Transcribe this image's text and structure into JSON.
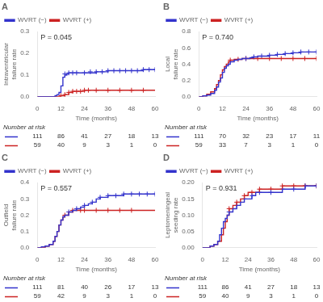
{
  "chart_data": [
    {
      "type": "step",
      "title": "A",
      "xlabel": "Time (months)",
      "ylabel": "Intraventricular failure rate",
      "xlim": [
        0,
        60
      ],
      "xticks": [
        0,
        12,
        24,
        36,
        48,
        60
      ],
      "ylim": [
        0,
        0.3
      ],
      "yticks": [
        {
          "value": 0.0,
          "label": "0.0"
        },
        0.1,
        0.2,
        0.3
      ],
      "grid": false,
      "legend": "upper left",
      "annotations": [
        "P = 0.045"
      ],
      "at_risk_label": "Number at risk",
      "series": [
        {
          "name": "WVRT (−)",
          "color": "#3333cc",
          "x": [
            0,
            2,
            4,
            6,
            8,
            9,
            10,
            11,
            12,
            13,
            14,
            15,
            16,
            18,
            20,
            22,
            24,
            30,
            36,
            42,
            48,
            54,
            60
          ],
          "values": [
            0,
            0,
            0,
            0,
            0,
            0.005,
            0.01,
            0.02,
            0.05,
            0.09,
            0.1,
            0.105,
            0.11,
            0.11,
            0.11,
            0.11,
            0.11,
            0.115,
            0.12,
            0.12,
            0.12,
            0.125,
            0.125
          ],
          "at_risk": [
            111,
            86,
            41,
            27,
            18,
            13
          ]
        },
        {
          "name": "WVRT (+)",
          "color": "#cc2222",
          "x": [
            0,
            8,
            10,
            12,
            14,
            16,
            18,
            20,
            22,
            24,
            30,
            36,
            42,
            48,
            54,
            60
          ],
          "values": [
            0,
            0,
            0,
            0.005,
            0.01,
            0.02,
            0.025,
            0.025,
            0.025,
            0.03,
            0.03,
            0.03,
            0.03,
            0.03,
            0.03,
            0.03
          ],
          "at_risk": [
            59,
            40,
            9,
            3,
            1,
            0
          ]
        },
        {
          "type": "scatter",
          "marker": "plus",
          "color": "#3333cc",
          "x": [
            14,
            16,
            18,
            20,
            24,
            27,
            30,
            33,
            36,
            39,
            42,
            45,
            48,
            51,
            54,
            57,
            60
          ],
          "values": [
            0.105,
            0.11,
            0.11,
            0.11,
            0.11,
            0.115,
            0.115,
            0.115,
            0.12,
            0.12,
            0.12,
            0.12,
            0.12,
            0.12,
            0.125,
            0.125,
            0.125
          ]
        },
        {
          "type": "scatter",
          "marker": "plus",
          "color": "#cc2222",
          "x": [
            12,
            14,
            16,
            18,
            20,
            22,
            24,
            26,
            30,
            36,
            42,
            48,
            54
          ],
          "values": [
            0.005,
            0.01,
            0.02,
            0.025,
            0.025,
            0.025,
            0.03,
            0.03,
            0.03,
            0.03,
            0.03,
            0.03,
            0.03
          ]
        }
      ]
    },
    {
      "type": "step",
      "title": "B",
      "xlabel": "Time (months)",
      "ylabel": "Local failure rate",
      "xlim": [
        0,
        60
      ],
      "xticks": [
        0,
        12,
        24,
        36,
        48,
        60
      ],
      "ylim": [
        0,
        0.8
      ],
      "yticks": [
        {
          "value": 0.0,
          "label": "0.0"
        },
        0.2,
        0.4,
        0.6,
        0.8
      ],
      "grid": false,
      "legend": "upper left",
      "annotations": [
        "P = 0.740"
      ],
      "at_risk_label": "Number at risk",
      "series": [
        {
          "name": "WVRT (−)",
          "color": "#3333cc",
          "x": [
            0,
            2,
            4,
            6,
            8,
            9,
            10,
            11,
            12,
            13,
            14,
            15,
            16,
            18,
            20,
            22,
            24,
            26,
            28,
            30,
            32,
            36,
            40,
            44,
            48,
            52,
            56,
            60
          ],
          "values": [
            0,
            0.01,
            0.02,
            0.04,
            0.08,
            0.12,
            0.18,
            0.23,
            0.3,
            0.35,
            0.38,
            0.4,
            0.43,
            0.45,
            0.46,
            0.47,
            0.47,
            0.48,
            0.49,
            0.5,
            0.5,
            0.51,
            0.52,
            0.53,
            0.54,
            0.55,
            0.55,
            0.55
          ],
          "at_risk": [
            111,
            70,
            32,
            23,
            17,
            11
          ]
        },
        {
          "name": "WVRT (+)",
          "color": "#cc2222",
          "x": [
            0,
            2,
            4,
            6,
            8,
            9,
            10,
            11,
            12,
            13,
            14,
            15,
            16,
            18,
            20,
            22,
            24,
            26,
            28,
            30,
            36,
            42,
            48,
            54,
            60
          ],
          "values": [
            0,
            0.01,
            0.03,
            0.06,
            0.1,
            0.15,
            0.2,
            0.27,
            0.33,
            0.37,
            0.4,
            0.43,
            0.45,
            0.46,
            0.46,
            0.47,
            0.47,
            0.47,
            0.47,
            0.47,
            0.47,
            0.47,
            0.47,
            0.47,
            0.47
          ],
          "at_risk": [
            59,
            33,
            7,
            3,
            1,
            0
          ]
        },
        {
          "type": "scatter",
          "marker": "plus",
          "color": "#3333cc",
          "x": [
            24,
            28,
            32,
            36,
            40,
            44,
            48,
            52,
            56,
            60
          ],
          "values": [
            0.47,
            0.49,
            0.5,
            0.51,
            0.52,
            0.53,
            0.54,
            0.55,
            0.55,
            0.55
          ]
        },
        {
          "type": "scatter",
          "marker": "plus",
          "color": "#cc2222",
          "x": [
            16,
            20,
            24,
            30,
            36,
            42,
            48,
            54,
            60
          ],
          "values": [
            0.45,
            0.46,
            0.47,
            0.47,
            0.47,
            0.47,
            0.47,
            0.47,
            0.47
          ]
        }
      ]
    },
    {
      "type": "step",
      "title": "C",
      "xlabel": "Time (months)",
      "ylabel": "Outfield failure rate",
      "xlim": [
        0,
        60
      ],
      "xticks": [
        0,
        12,
        24,
        36,
        48,
        60
      ],
      "ylim": [
        0,
        0.4
      ],
      "yticks": [
        {
          "value": 0.0,
          "label": "0.0"
        },
        0.1,
        0.2,
        0.3,
        0.4
      ],
      "grid": false,
      "legend": "upper left",
      "annotations": [
        "P = 0.557"
      ],
      "at_risk_label": "Number at risk",
      "series": [
        {
          "name": "WVRT (−)",
          "color": "#3333cc",
          "x": [
            0,
            2,
            4,
            6,
            8,
            9,
            10,
            11,
            12,
            13,
            14,
            16,
            18,
            20,
            22,
            24,
            26,
            28,
            30,
            32,
            36,
            40,
            44,
            48,
            52,
            56,
            60
          ],
          "values": [
            0,
            0.005,
            0.01,
            0.02,
            0.04,
            0.07,
            0.1,
            0.14,
            0.17,
            0.19,
            0.2,
            0.22,
            0.23,
            0.24,
            0.25,
            0.26,
            0.27,
            0.28,
            0.3,
            0.31,
            0.32,
            0.32,
            0.33,
            0.33,
            0.33,
            0.33,
            0.33
          ],
          "at_risk": [
            111,
            81,
            40,
            26,
            17,
            13
          ]
        },
        {
          "name": "WVRT (+)",
          "color": "#cc2222",
          "x": [
            0,
            4,
            6,
            8,
            9,
            10,
            11,
            12,
            13,
            14,
            16,
            18,
            20,
            22,
            24,
            30,
            36,
            42,
            48,
            54,
            60
          ],
          "values": [
            0,
            0.01,
            0.02,
            0.04,
            0.07,
            0.1,
            0.14,
            0.17,
            0.19,
            0.2,
            0.22,
            0.23,
            0.23,
            0.23,
            0.23,
            0.23,
            0.23,
            0.23,
            0.23,
            0.23,
            0.23
          ],
          "at_risk": [
            59,
            42,
            9,
            3,
            1,
            0
          ]
        },
        {
          "type": "scatter",
          "marker": "plus",
          "color": "#3333cc",
          "x": [
            16,
            20,
            24,
            28,
            32,
            36,
            40,
            44,
            48,
            52,
            56,
            60
          ],
          "values": [
            0.22,
            0.24,
            0.26,
            0.28,
            0.31,
            0.32,
            0.32,
            0.33,
            0.33,
            0.33,
            0.33,
            0.33
          ]
        },
        {
          "type": "scatter",
          "marker": "plus",
          "color": "#cc2222",
          "x": [
            14,
            18,
            22,
            24,
            30,
            36,
            42,
            48
          ],
          "values": [
            0.2,
            0.23,
            0.23,
            0.23,
            0.23,
            0.23,
            0.23,
            0.23
          ]
        }
      ]
    },
    {
      "type": "step",
      "title": "D",
      "xlabel": "Time (months)",
      "ylabel": "Leptomeningeal seeding rate",
      "xlim": [
        0,
        60
      ],
      "xticks": [
        0,
        12,
        24,
        36,
        48,
        60
      ],
      "ylim": [
        0,
        0.2
      ],
      "yticks": [
        {
          "value": 0.0,
          "label": "0.00"
        },
        0.05,
        {
          "value": 0.1,
          "label": "0.10"
        },
        0.15,
        {
          "value": 0.2,
          "label": "0.20"
        }
      ],
      "grid": false,
      "legend": "upper left",
      "annotations": [
        "P = 0.931"
      ],
      "at_risk_label": "Number at risk",
      "series": [
        {
          "name": "WVRT (−)",
          "color": "#3333cc",
          "x": [
            0,
            4,
            6,
            8,
            9,
            10,
            11,
            12,
            13,
            14,
            16,
            18,
            20,
            22,
            24,
            26,
            28,
            30,
            36,
            42,
            48,
            54,
            60
          ],
          "values": [
            0,
            0.005,
            0.01,
            0.02,
            0.04,
            0.06,
            0.08,
            0.09,
            0.1,
            0.11,
            0.12,
            0.13,
            0.14,
            0.15,
            0.15,
            0.16,
            0.17,
            0.17,
            0.17,
            0.18,
            0.18,
            0.19,
            0.19
          ],
          "at_risk": [
            111,
            86,
            41,
            27,
            18,
            13
          ]
        },
        {
          "name": "WVRT (+)",
          "color": "#cc2222",
          "x": [
            0,
            4,
            6,
            8,
            10,
            11,
            12,
            13,
            14,
            16,
            18,
            20,
            22,
            24,
            30,
            36,
            42,
            48,
            54,
            60
          ],
          "values": [
            0,
            0.005,
            0.01,
            0.02,
            0.04,
            0.06,
            0.08,
            0.1,
            0.12,
            0.13,
            0.14,
            0.15,
            0.16,
            0.17,
            0.18,
            0.18,
            0.19,
            0.19,
            0.19,
            0.19
          ],
          "at_risk": [
            59,
            40,
            9,
            3,
            1,
            0
          ]
        },
        {
          "type": "scatter",
          "marker": "plus",
          "color": "#3333cc",
          "x": [
            14,
            18,
            22,
            26,
            30,
            36,
            42,
            48,
            54,
            60
          ],
          "values": [
            0.11,
            0.13,
            0.15,
            0.16,
            0.17,
            0.17,
            0.18,
            0.18,
            0.19,
            0.19
          ]
        },
        {
          "type": "scatter",
          "marker": "plus",
          "color": "#cc2222",
          "x": [
            14,
            18,
            22,
            26,
            30,
            36,
            42,
            48,
            54,
            60
          ],
          "values": [
            0.12,
            0.14,
            0.16,
            0.17,
            0.18,
            0.18,
            0.19,
            0.19,
            0.19,
            0.19
          ]
        }
      ]
    }
  ]
}
